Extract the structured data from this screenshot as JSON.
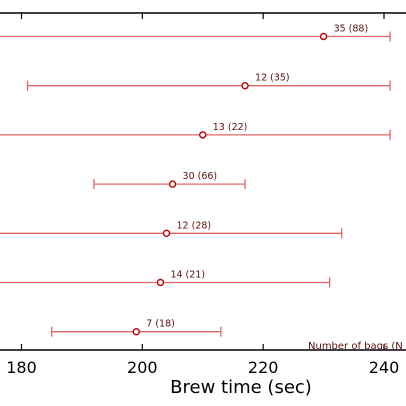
{
  "chart_data": {
    "type": "scatter",
    "xlabel": "Brew time (sec)",
    "xlim": [
      167,
      241
    ],
    "x_ticks": [
      180,
      200,
      220,
      240
    ],
    "colors": {
      "line": "#e06666",
      "marker_edge": "#c00000",
      "label": "#5a0f0f"
    },
    "series": [
      {
        "center": 230,
        "low": 164,
        "high": 241,
        "label": "35 (88)"
      },
      {
        "center": 217,
        "low": 181,
        "high": 241,
        "label": "12 (35)"
      },
      {
        "center": 210,
        "low": 167,
        "high": 241,
        "label": "13 (22)"
      },
      {
        "center": 205,
        "low": 192,
        "high": 217,
        "label": "30 (66)"
      },
      {
        "center": 204,
        "low": 167,
        "high": 233,
        "label": "12 (28)"
      },
      {
        "center": 203,
        "low": 167,
        "high": 231,
        "label": "14 (21)"
      },
      {
        "center": 199,
        "low": 185,
        "high": 213,
        "label": "7 (18)"
      }
    ],
    "note": "Number of bags (N"
  }
}
